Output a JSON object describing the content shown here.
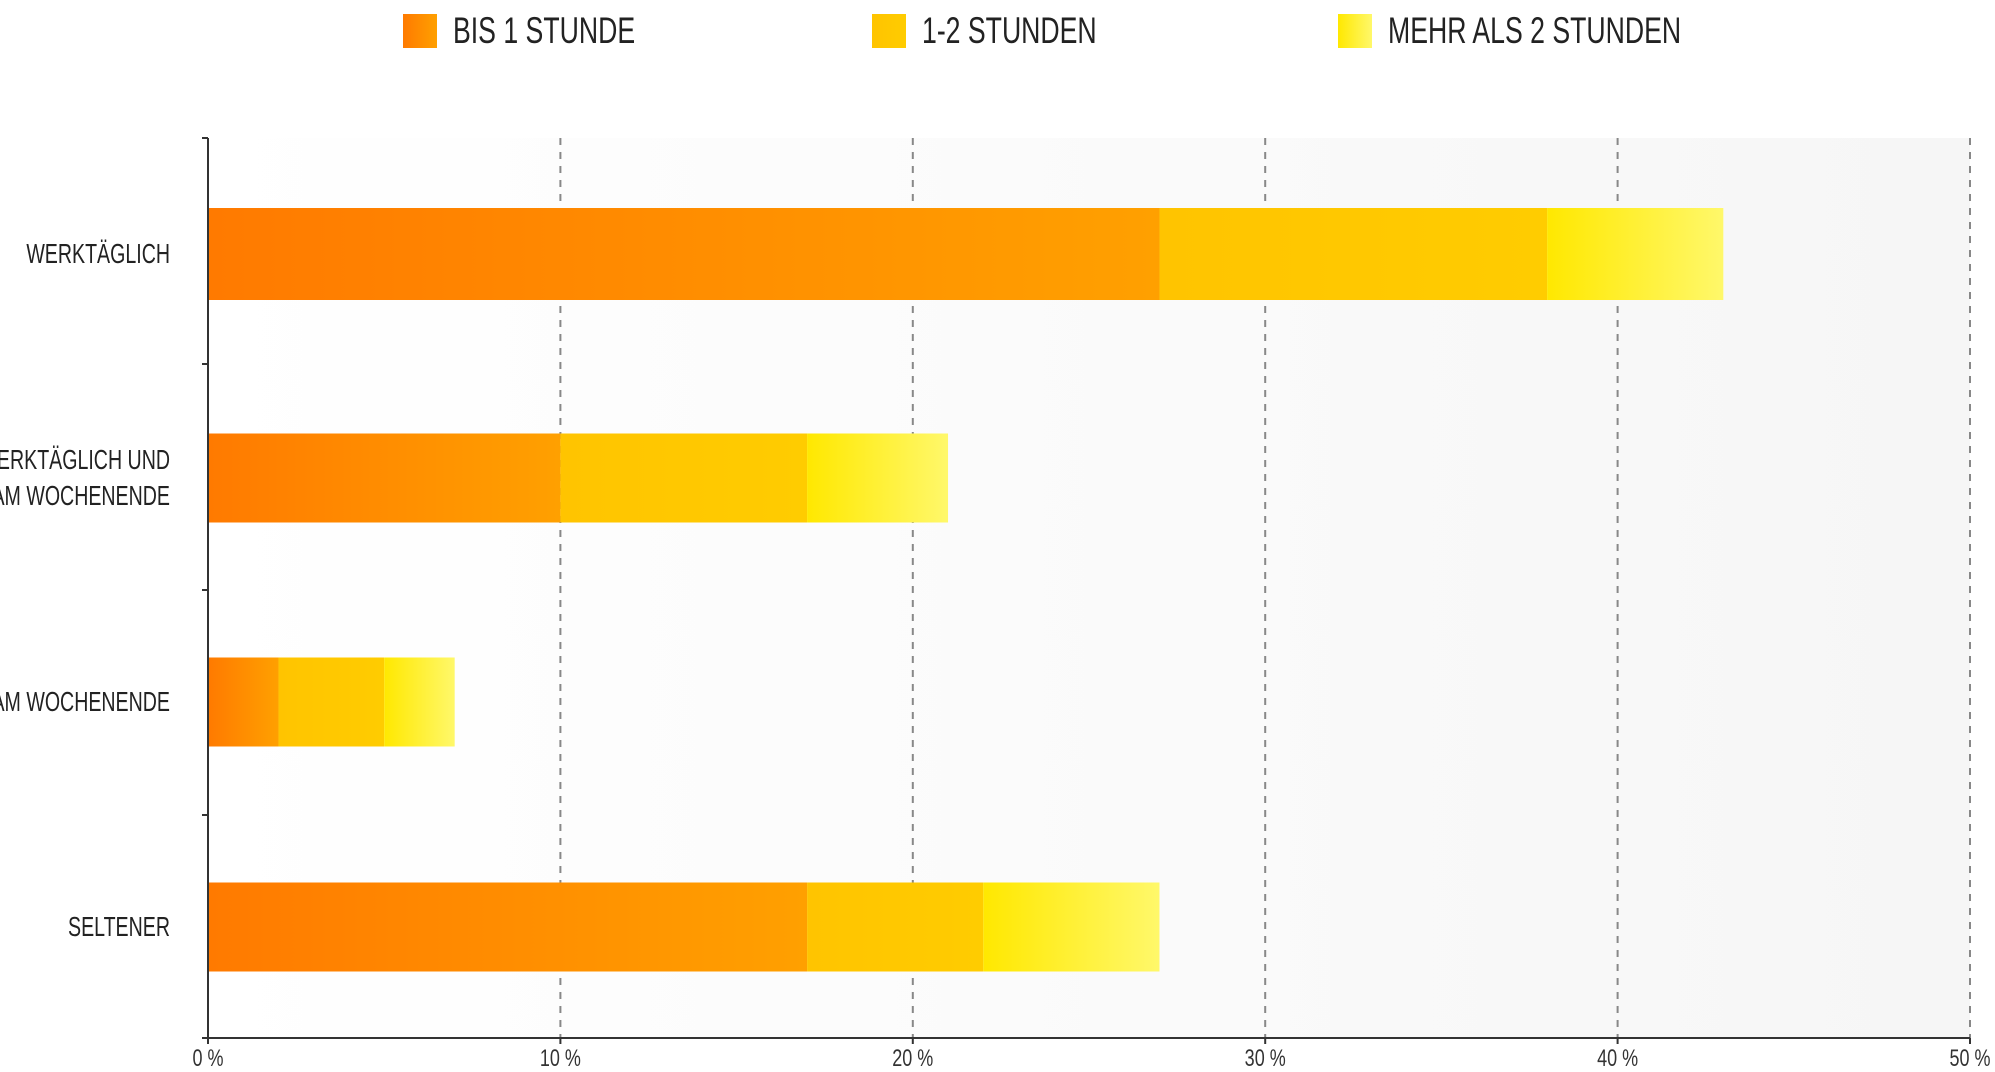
{
  "chart_data": {
    "type": "bar",
    "orientation": "horizontal",
    "stacked": true,
    "categories": [
      "WERKTÄGLICH",
      "WERKTÄGLICH UND AM WOCHENENDE",
      "AM WOCHENENDE",
      "SELTENER"
    ],
    "category_lines": [
      [
        "WERKTÄGLICH"
      ],
      [
        "WERKTÄGLICH UND",
        "AM WOCHENENDE"
      ],
      [
        "AM WOCHENENDE"
      ],
      [
        "SELTENER"
      ]
    ],
    "series": [
      {
        "name": "BIS 1 STUNDE",
        "values": [
          27,
          10,
          2,
          17
        ],
        "color": "#ff7a00",
        "color_end": "#ffa000"
      },
      {
        "name": "1-2 STUNDEN",
        "values": [
          11,
          7,
          3,
          5
        ],
        "color": "#ffc400",
        "color_end": "#ffcc00"
      },
      {
        "name": "MEHR ALS 2 STUNDEN",
        "values": [
          5,
          4,
          2,
          5
        ],
        "color": "#ffe800",
        "color_end": "#fff86a"
      }
    ],
    "xlim": [
      0,
      50
    ],
    "xticks": [
      0,
      10,
      20,
      30,
      40,
      50
    ],
    "xtick_labels": [
      "0 %",
      "10 %",
      "20 %",
      "30 %",
      "40 %",
      "50 %"
    ],
    "grid": true,
    "legend_position": "top",
    "title": "",
    "xlabel": "",
    "ylabel": ""
  }
}
